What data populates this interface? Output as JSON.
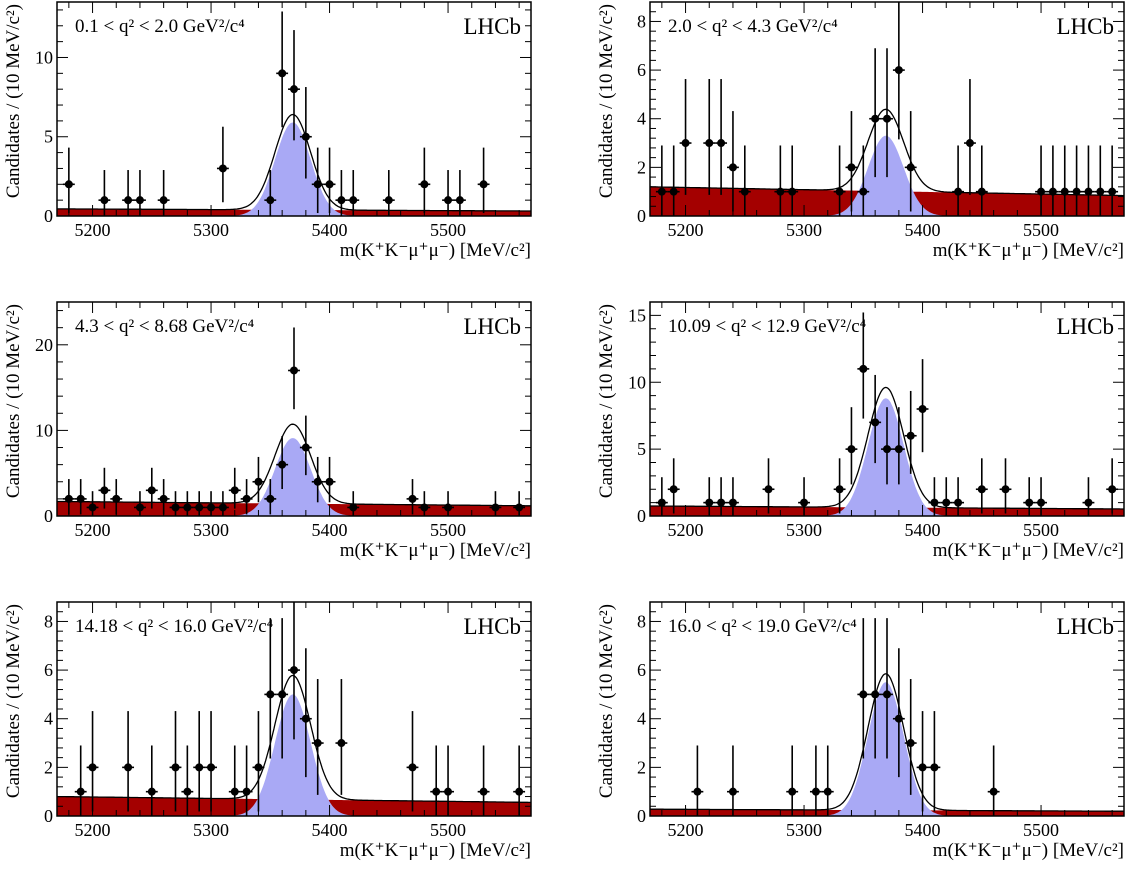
{
  "figure": {
    "xlabel": "m(K⁺K⁻μ⁺μ⁻) [MeV/c²]",
    "ylabel": "Candidates / (10 MeV/c²)",
    "experiment_label": "LHCb"
  },
  "colors": {
    "signal_fill": "#a9a9f5",
    "background_fill": "#a40000",
    "total_fit_line": "#000000",
    "data_points": "#000000"
  },
  "chart_data": [
    {
      "type": "scatter",
      "q2_label": "0.1 < q² < 2.0 GeV²/c⁴",
      "xlim": [
        5170,
        5570
      ],
      "ylim": [
        0,
        13.5
      ],
      "xticks": [
        5200,
        5300,
        5400,
        5500
      ],
      "yticks": [
        0,
        5,
        10
      ],
      "series": [
        {
          "x": [
            5180,
            5210,
            5230,
            5240,
            5260,
            5310,
            5350,
            5360,
            5370,
            5380,
            5390,
            5400,
            5410,
            5420,
            5450,
            5480,
            5500,
            5510,
            5530
          ],
          "y": [
            2,
            1,
            1,
            1,
            1,
            3,
            1,
            9,
            8,
            5,
            2,
            2,
            1,
            1,
            1,
            2,
            1,
            1,
            2
          ]
        }
      ],
      "fit": {
        "signal_peak": 5.9,
        "mean": 5369,
        "sigma": 15,
        "background_level": 0.45
      }
    },
    {
      "type": "scatter",
      "q2_label": "2.0 < q² < 4.3 GeV²/c⁴",
      "xlim": [
        5170,
        5570
      ],
      "ylim": [
        0,
        8.8
      ],
      "xticks": [
        5200,
        5300,
        5400,
        5500
      ],
      "yticks": [
        0,
        2,
        4,
        6,
        8
      ],
      "series": [
        {
          "x": [
            5180,
            5190,
            5200,
            5220,
            5230,
            5240,
            5250,
            5280,
            5290,
            5330,
            5340,
            5350,
            5360,
            5370,
            5380,
            5390,
            5430,
            5440,
            5450,
            5500,
            5510,
            5520,
            5530,
            5540,
            5550,
            5560
          ],
          "y": [
            1,
            1,
            3,
            3,
            3,
            2,
            1,
            1,
            1,
            1,
            2,
            1,
            4,
            4,
            6,
            2,
            1,
            3,
            1,
            1,
            1,
            1,
            1,
            1,
            1,
            1
          ]
        }
      ],
      "fit": {
        "signal_peak": 3.3,
        "mean": 5369,
        "sigma": 15,
        "background_level": 1.2
      }
    },
    {
      "type": "scatter",
      "q2_label": "4.3 < q² < 8.68 GeV²/c⁴",
      "xlim": [
        5170,
        5570
      ],
      "ylim": [
        0,
        25
      ],
      "xticks": [
        5200,
        5300,
        5400,
        5500
      ],
      "yticks": [
        0,
        10,
        20
      ],
      "series": [
        {
          "x": [
            5180,
            5190,
            5200,
            5210,
            5220,
            5240,
            5250,
            5260,
            5270,
            5280,
            5290,
            5300,
            5310,
            5320,
            5330,
            5340,
            5350,
            5360,
            5370,
            5380,
            5390,
            5400,
            5420,
            5470,
            5480,
            5500,
            5540,
            5560
          ],
          "y": [
            2,
            2,
            1,
            3,
            2,
            1,
            3,
            2,
            1,
            1,
            1,
            1,
            1,
            3,
            2,
            4,
            2,
            6,
            17,
            8,
            4,
            4,
            1,
            2,
            1,
            1,
            1,
            1
          ]
        }
      ],
      "fit": {
        "signal_peak": 9.1,
        "mean": 5369,
        "sigma": 15,
        "background_level": 1.7
      }
    },
    {
      "type": "scatter",
      "q2_label": "10.09 < q² < 12.9 GeV²/c⁴",
      "xlim": [
        5170,
        5570
      ],
      "ylim": [
        0,
        16
      ],
      "xticks": [
        5200,
        5300,
        5400,
        5500
      ],
      "yticks": [
        0,
        5,
        10,
        15
      ],
      "series": [
        {
          "x": [
            5180,
            5190,
            5220,
            5230,
            5240,
            5270,
            5300,
            5330,
            5340,
            5350,
            5360,
            5370,
            5380,
            5390,
            5400,
            5410,
            5420,
            5430,
            5450,
            5470,
            5490,
            5500,
            5540,
            5560
          ],
          "y": [
            1,
            2,
            1,
            1,
            1,
            2,
            1,
            2,
            5,
            11,
            7,
            5,
            5,
            6,
            8,
            1,
            1,
            1,
            2,
            2,
            1,
            1,
            1,
            2
          ]
        }
      ],
      "fit": {
        "signal_peak": 8.8,
        "mean": 5369,
        "sigma": 15,
        "background_level": 0.75
      }
    },
    {
      "type": "scatter",
      "q2_label": "14.18 < q² < 16.0 GeV²/c⁴",
      "xlim": [
        5170,
        5570
      ],
      "ylim": [
        0,
        8.8
      ],
      "xticks": [
        5200,
        5300,
        5400,
        5500
      ],
      "yticks": [
        0,
        2,
        4,
        6,
        8
      ],
      "series": [
        {
          "x": [
            5190,
            5200,
            5230,
            5250,
            5270,
            5280,
            5290,
            5300,
            5320,
            5330,
            5340,
            5350,
            5360,
            5370,
            5380,
            5390,
            5410,
            5470,
            5490,
            5500,
            5530,
            5560
          ],
          "y": [
            1,
            2,
            2,
            1,
            2,
            1,
            2,
            2,
            1,
            1,
            2,
            5,
            5,
            6,
            4,
            3,
            3,
            2,
            1,
            1,
            1,
            1
          ]
        }
      ],
      "fit": {
        "signal_peak": 5.0,
        "mean": 5369,
        "sigma": 15,
        "background_level": 0.8
      }
    },
    {
      "type": "scatter",
      "q2_label": "16.0 < q² < 19.0 GeV²/c⁴",
      "xlim": [
        5170,
        5570
      ],
      "ylim": [
        0,
        8.8
      ],
      "xticks": [
        5200,
        5300,
        5400,
        5500
      ],
      "yticks": [
        0,
        2,
        4,
        6,
        8
      ],
      "series": [
        {
          "x": [
            5210,
            5240,
            5290,
            5310,
            5320,
            5350,
            5360,
            5370,
            5380,
            5390,
            5400,
            5410,
            5460
          ],
          "y": [
            1,
            1,
            1,
            1,
            1,
            5,
            5,
            5,
            4,
            3,
            2,
            2,
            1
          ]
        }
      ],
      "fit": {
        "signal_peak": 5.5,
        "mean": 5369,
        "sigma": 15,
        "background_level": 0.28
      }
    }
  ]
}
